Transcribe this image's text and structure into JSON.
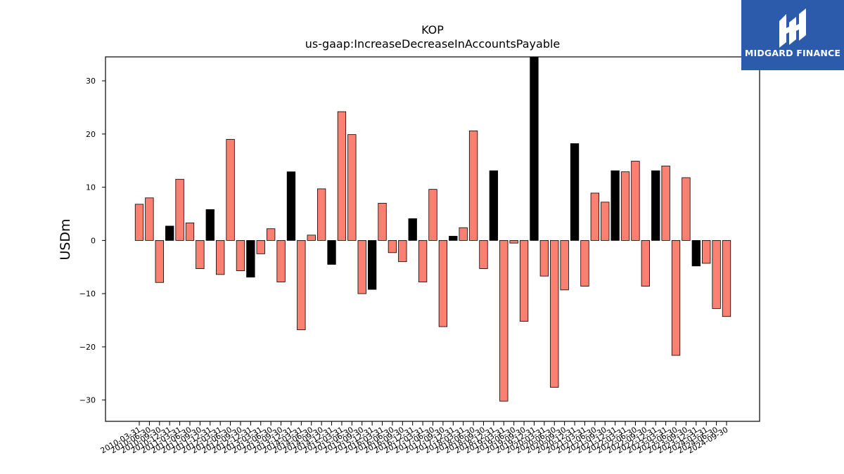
{
  "chart_data": {
    "type": "bar",
    "title": "KOP",
    "subtitle": "us-gaap:IncreaseDecreaseInAccountsPayable",
    "xlabel": "",
    "ylabel": "USDm",
    "ylim": [
      -34,
      34.5
    ],
    "yticks": [
      -30,
      -20,
      -10,
      0,
      10,
      20,
      30
    ],
    "grid": false,
    "colors": {
      "default": "#fa8072",
      "highlight": "#000000"
    },
    "categories": [
      "2010-03-31",
      "2010-06-30",
      "2010-09-30",
      "2010-12-31",
      "2011-03-31",
      "2011-06-30",
      "2011-09-30",
      "2011-12-31",
      "2012-03-31",
      "2012-06-30",
      "2012-09-30",
      "2012-12-31",
      "2013-03-31",
      "2013-06-30",
      "2013-09-30",
      "2013-12-31",
      "2014-03-31",
      "2014-06-30",
      "2014-09-30",
      "2014-12-31",
      "2015-03-31",
      "2015-06-30",
      "2015-09-30",
      "2015-12-31",
      "2016-03-31",
      "2016-06-30",
      "2016-09-30",
      "2016-12-31",
      "2017-03-31",
      "2017-06-30",
      "2017-09-30",
      "2017-12-31",
      "2018-03-31",
      "2018-06-30",
      "2018-09-30",
      "2018-12-31",
      "2019-03-31",
      "2019-06-30",
      "2019-09-30",
      "2019-12-31",
      "2020-03-31",
      "2020-06-30",
      "2020-09-30",
      "2020-12-31",
      "2021-03-31",
      "2021-06-30",
      "2021-09-30",
      "2021-12-31",
      "2022-03-31",
      "2022-06-30",
      "2022-09-30",
      "2022-12-31",
      "2023-03-31",
      "2023-06-30",
      "2023-09-30",
      "2023-12-31",
      "2024-03-31",
      "2024-06-30",
      "2024-09-30"
    ],
    "values": [
      6.8,
      8.0,
      -7.9,
      2.7,
      11.5,
      3.3,
      -5.3,
      5.8,
      -6.4,
      19.0,
      -5.7,
      -6.9,
      -2.5,
      2.2,
      -7.8,
      12.9,
      -16.8,
      1.0,
      9.7,
      -4.5,
      24.2,
      19.9,
      -10.0,
      -9.2,
      7.0,
      -2.3,
      -4.0,
      4.1,
      -7.8,
      9.6,
      -16.2,
      0.8,
      2.4,
      20.6,
      -5.3,
      13.1,
      -30.2,
      -0.5,
      -15.2,
      34.5,
      -6.7,
      -27.6,
      -9.3,
      18.2,
      -8.6,
      8.9,
      7.2,
      13.1,
      12.9,
      14.9,
      -8.6,
      13.1,
      14.0,
      -21.6,
      11.8,
      -4.8,
      -4.3,
      -12.8,
      -14.3
    ],
    "highlighted": [
      false,
      false,
      false,
      true,
      false,
      false,
      false,
      true,
      false,
      false,
      false,
      true,
      false,
      false,
      false,
      true,
      false,
      false,
      false,
      true,
      false,
      false,
      false,
      true,
      false,
      false,
      false,
      true,
      false,
      false,
      false,
      true,
      false,
      false,
      false,
      true,
      false,
      false,
      false,
      true,
      false,
      false,
      false,
      true,
      false,
      false,
      false,
      true,
      false,
      false,
      false,
      true,
      false,
      false,
      false,
      true,
      false,
      false,
      false
    ]
  },
  "logo": {
    "text": "MIDGARD FINANCE",
    "icon": "midgard-logo-icon",
    "color": "#2d5bab"
  }
}
